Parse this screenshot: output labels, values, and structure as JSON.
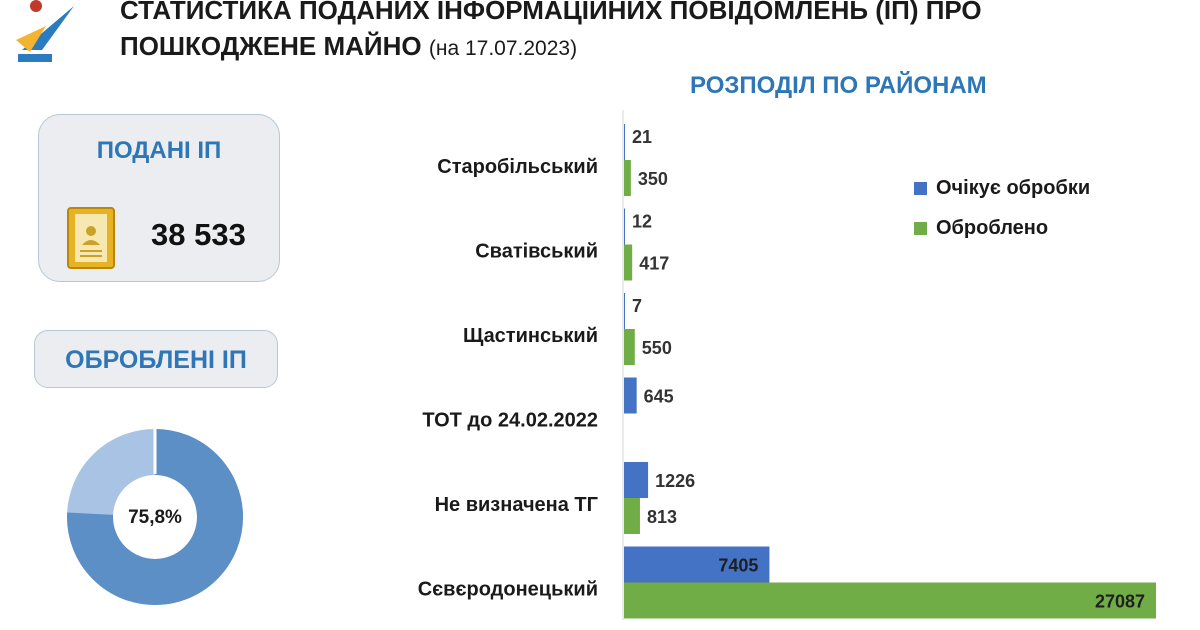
{
  "header": {
    "title_line1": "СТАТИСТИКА ПОДАНИХ ІНФОРМАЦІЙНИХ ПОВІДОМЛЕНЬ (ІП) ПРО",
    "title_line2": "ПОШКОДЖЕНЕ МАЙНО",
    "date_note": "(на 17.07.2023)"
  },
  "submitted": {
    "label": "ПОДАНІ ІП",
    "value": "38 533"
  },
  "processed": {
    "label": "ОБРОБЛЕНІ ІП",
    "percent_label": "75,8%",
    "percent": 75.8
  },
  "colors": {
    "accent": "#2e76b6",
    "pending": "#4472c4",
    "processed": "#70ad47",
    "donut_main": "#5b8fc6",
    "donut_rest": "#a9c3e4",
    "card_bg": "#ecedf0"
  },
  "chart_data": {
    "type": "bar",
    "orientation": "horizontal",
    "title": "РОЗПОДІЛ ПО РАЙОНАМ",
    "categories": [
      "Старобільський",
      "Сватівський",
      "Щастинський",
      "ТОТ до 24.02.2022",
      "Не визначена ТГ",
      "Сєвєродонецький"
    ],
    "series": [
      {
        "name": "Очікує обробки",
        "color": "#4472c4",
        "values": [
          21,
          12,
          7,
          645,
          1226,
          7405
        ]
      },
      {
        "name": "Оброблено",
        "color": "#70ad47",
        "values": [
          350,
          417,
          550,
          null,
          813,
          27087
        ]
      }
    ],
    "legend_position": "right",
    "grid": false
  }
}
